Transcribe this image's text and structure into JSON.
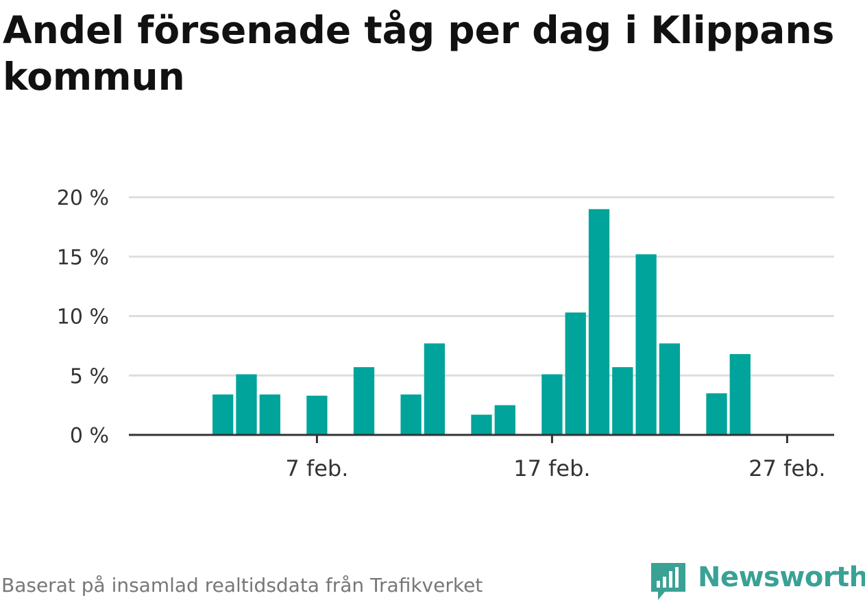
{
  "title": "Andel försenade tåg per dag i Klippans kommun",
  "footer": "Baserat på insamlad realtidsdata från Trafikverket",
  "logo": {
    "text": "Newsworthy",
    "icon": "newsworthy-chart-badge-icon"
  },
  "colors": {
    "bar": "#00a49a",
    "grid": "#dddddd",
    "axis": "#333333",
    "text": "#333333",
    "logo": "#3aa195"
  },
  "chart_data": {
    "type": "bar",
    "x_type": "date",
    "date_range": [
      "2023-01-30",
      "2023-03-01"
    ],
    "dates": [
      "2023-02-03",
      "2023-02-04",
      "2023-02-05",
      "2023-02-07",
      "2023-02-09",
      "2023-02-11",
      "2023-02-12",
      "2023-02-14",
      "2023-02-15",
      "2023-02-17",
      "2023-02-18",
      "2023-02-19",
      "2023-02-20",
      "2023-02-21",
      "2023-02-22",
      "2023-02-24",
      "2023-02-25"
    ],
    "values": [
      3.4,
      5.1,
      3.4,
      3.3,
      5.7,
      3.4,
      7.7,
      1.7,
      2.5,
      5.1,
      10.3,
      19.0,
      5.7,
      15.2,
      7.7,
      3.5,
      6.8
    ],
    "ylim": [
      0,
      20
    ],
    "y_ticks": [
      0,
      5,
      10,
      15,
      20
    ],
    "y_tick_labels": [
      "0 %",
      "5 %",
      "10 %",
      "15 %",
      "20 %"
    ],
    "x_ticks": [
      "2023-02-07",
      "2023-02-17",
      "2023-02-27"
    ],
    "x_tick_labels": [
      "7 feb.",
      "17 feb.",
      "27 feb."
    ],
    "grid": true,
    "legend": "none"
  }
}
